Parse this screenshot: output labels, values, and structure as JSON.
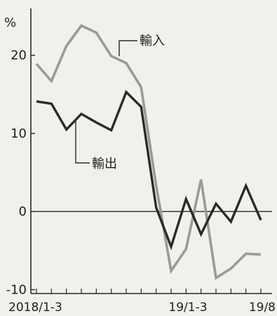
{
  "chart_data": {
    "type": "line",
    "unit": "%",
    "ylim": [
      -10.5,
      26
    ],
    "yticks": [
      -10,
      0,
      10,
      20
    ],
    "x_start": "2018/1",
    "x_end": "2019/8",
    "xtick_labels": [
      "2018/1-3",
      "19/1-3",
      "19/8"
    ],
    "grid": false,
    "series": [
      {
        "name": "輸入",
        "color": "#9a9a9a",
        "values": [
          18.9,
          16.7,
          21.2,
          23.8,
          22.9,
          19.9,
          19.0,
          15.9,
          3.3,
          -7.6,
          -4.8,
          4.1,
          -8.5,
          -7.3,
          -5.4,
          -5.5
        ]
      },
      {
        "name": "輸出",
        "color": "#2a2a2a",
        "values": [
          14.1,
          13.8,
          10.5,
          12.5,
          11.4,
          10.4,
          15.3,
          13.4,
          0.5,
          -4.5,
          1.6,
          -2.9,
          1.0,
          -1.3,
          3.3,
          -1.1
        ]
      }
    ]
  }
}
